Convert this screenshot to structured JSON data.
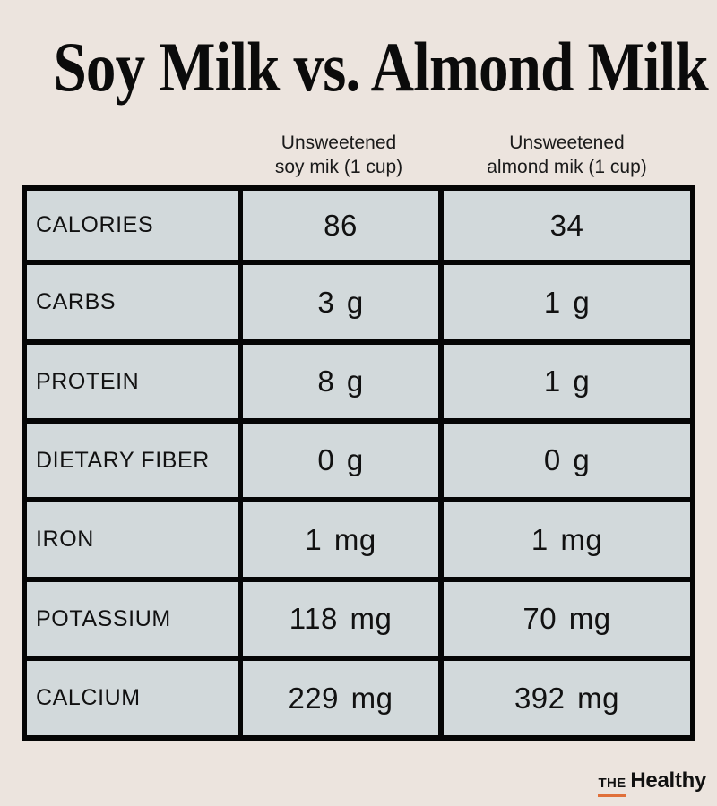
{
  "title": "Soy Milk vs. Almond Milk",
  "columns": [
    {
      "line1": "Unsweetened",
      "line2": "soy mik (1 cup)"
    },
    {
      "line1": "Unsweetened",
      "line2": "almond mik (1 cup)"
    }
  ],
  "rows": [
    {
      "label": "CALORIES",
      "soy": "86",
      "almond": "34"
    },
    {
      "label": "CARBS",
      "soy": "3 g",
      "almond": "1 g"
    },
    {
      "label": "PROTEIN",
      "soy": "8 g",
      "almond": "1 g"
    },
    {
      "label": "DIETARY FIBER",
      "soy": "0 g",
      "almond": "0 g"
    },
    {
      "label": "IRON",
      "soy": "1 mg",
      "almond": "1 mg"
    },
    {
      "label": "POTASSIUM",
      "soy": "118 mg",
      "almond": "70 mg"
    },
    {
      "label": "CALCIUM",
      "soy": "229 mg",
      "almond": "392 mg"
    }
  ],
  "brand": {
    "prefix": "THE",
    "name": "Healthy"
  },
  "colors": {
    "background": "#ECE4DE",
    "cell": "#D2D9DB",
    "grid": "#050505",
    "brand_accent": "#E0703A"
  }
}
